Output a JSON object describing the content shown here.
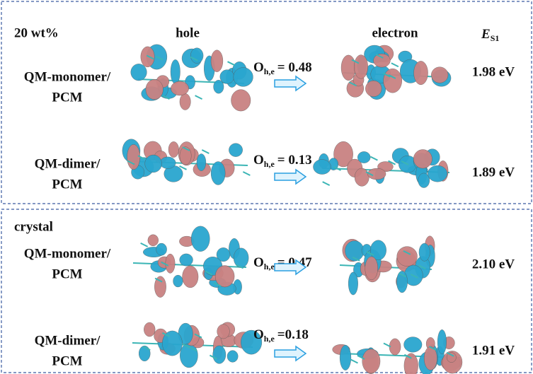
{
  "panels": [
    {
      "label": "20 wt%",
      "header": {
        "hole": "hole",
        "electron": "electron",
        "energy_symbol": "E",
        "energy_subscript": "S1"
      },
      "rows": [
        {
          "method_line1": "QM-monomer/",
          "method_line2": "PCM",
          "overlap_symbol": "O",
          "overlap_subscript": "h,e",
          "overlap_text": "= 0.48",
          "energy": "1.98 eV"
        },
        {
          "method_line1": "QM-dimer/",
          "method_line2": "PCM",
          "overlap_symbol": "O",
          "overlap_subscript": "h,e",
          "overlap_text": "= 0.13",
          "energy": "1.89 eV"
        }
      ]
    },
    {
      "label": "crystal",
      "rows": [
        {
          "method_line1": "QM-monomer/",
          "method_line2": "PCM",
          "overlap_symbol": "O",
          "overlap_subscript": "h,e",
          "overlap_text": "= 0.47",
          "energy": "2.10 eV"
        },
        {
          "method_line1": "QM-dimer/",
          "method_line2": "PCM",
          "overlap_symbol": "O",
          "overlap_subscript": "h,e",
          "overlap_text": "=0.18",
          "energy": "1.91 eV"
        }
      ]
    }
  ]
}
